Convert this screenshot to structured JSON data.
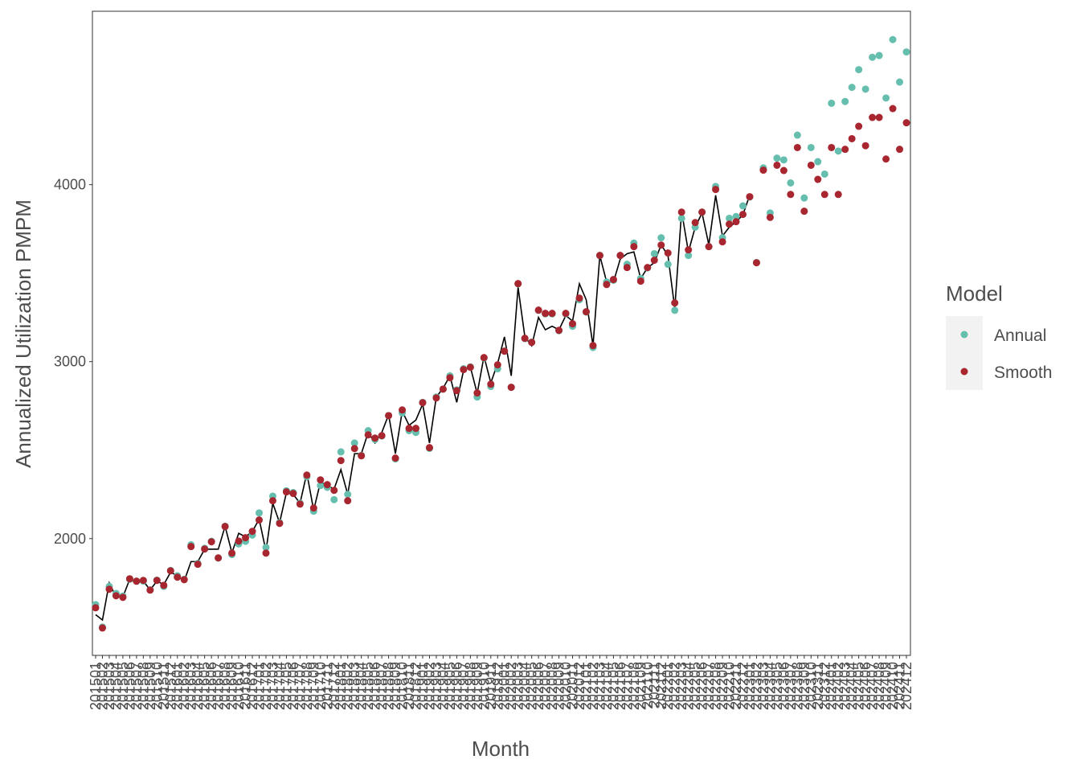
{
  "chart_data": {
    "type": "scatter",
    "x_label": "Month",
    "y_label": "Annualized Utilization PMPM",
    "legend_title": "Model",
    "legend_position": "right",
    "grid": false,
    "categories": [
      "201501",
      "201502",
      "201503",
      "201504",
      "201505",
      "201506",
      "201507",
      "201508",
      "201509",
      "201510",
      "201511",
      "201512",
      "201601",
      "201602",
      "201603",
      "201604",
      "201605",
      "201606",
      "201607",
      "201608",
      "201609",
      "201610",
      "201611",
      "201612",
      "201701",
      "201702",
      "201703",
      "201704",
      "201705",
      "201706",
      "201707",
      "201708",
      "201709",
      "201710",
      "201711",
      "201712",
      "201801",
      "201802",
      "201803",
      "201804",
      "201805",
      "201806",
      "201807",
      "201808",
      "201809",
      "201810",
      "201811",
      "201812",
      "201901",
      "201902",
      "201903",
      "201904",
      "201905",
      "201906",
      "201907",
      "201908",
      "201909",
      "201910",
      "201911",
      "201912",
      "202001",
      "202002",
      "202003",
      "202004",
      "202005",
      "202006",
      "202007",
      "202008",
      "202009",
      "202010",
      "202011",
      "202012",
      "202101",
      "202102",
      "202103",
      "202104",
      "202105",
      "202106",
      "202107",
      "202108",
      "202109",
      "202110",
      "202111",
      "202112",
      "202201",
      "202202",
      "202203",
      "202204",
      "202205",
      "202206",
      "202207",
      "202208",
      "202209",
      "202210",
      "202211",
      "202212",
      "202301",
      "202302",
      "202303",
      "202304",
      "202305",
      "202306",
      "202307",
      "202308",
      "202309",
      "202310",
      "202311",
      "202312",
      "202401",
      "202402",
      "202403",
      "202404",
      "202405",
      "202406",
      "202407",
      "202408",
      "202409",
      "202410",
      "202411",
      "202412"
    ],
    "ylim": [
      1340,
      4980
    ],
    "yticks": [
      2000,
      3000,
      4000
    ],
    "line": {
      "color": "#000000",
      "values": [
        1570,
        1540,
        1750,
        1670,
        1670,
        1770,
        1750,
        1760,
        1710,
        1760,
        1740,
        1810,
        1790,
        1760,
        1870,
        1870,
        1940,
        1940,
        1940,
        2070,
        1920,
        2030,
        2010,
        2040,
        2110,
        1930,
        2200,
        2090,
        2260,
        2250,
        2200,
        2370,
        2160,
        2320,
        2300,
        2280,
        2390,
        2250,
        2480,
        2480,
        2600,
        2540,
        2600,
        2700,
        2480,
        2720,
        2640,
        2670,
        2760,
        2540,
        2800,
        2850,
        2920,
        2770,
        2950,
        2970,
        2820,
        3030,
        2880,
        2990,
        3140,
        2920,
        3420,
        3140,
        3090,
        3250,
        3180,
        3200,
        3180,
        3260,
        3230,
        3440,
        3350,
        3090,
        3600,
        3450,
        3450,
        3580,
        3610,
        3620,
        3470,
        3530,
        3560,
        3660,
        3600,
        3300,
        3850,
        3620,
        3760,
        3840,
        3660,
        3940,
        3710,
        3760,
        3790,
        3830,
        3940,
        null,
        null,
        null,
        null,
        null,
        null,
        null,
        null,
        null,
        null,
        null,
        null,
        null,
        null,
        null,
        null,
        null,
        null,
        null,
        null,
        null,
        null
      ]
    },
    "series": [
      {
        "name": "Annual",
        "color": "#66bfae",
        "values": [
          1627,
          1500,
          1730,
          1690,
          1675,
          1770,
          1760,
          1760,
          1710,
          1765,
          1730,
          1820,
          1790,
          1770,
          1965,
          1860,
          1945,
          1985,
          1890,
          2070,
          1910,
          1970,
          1985,
          2020,
          2145,
          1950,
          2240,
          2090,
          2270,
          2260,
          2200,
          2350,
          2155,
          2300,
          2290,
          2220,
          2490,
          2250,
          2540,
          2470,
          2610,
          2560,
          2580,
          2695,
          2450,
          2710,
          2610,
          2600,
          2770,
          2510,
          2800,
          2845,
          2920,
          2840,
          2960,
          2970,
          2800,
          3020,
          2860,
          2960,
          3060,
          2855,
          3440,
          3130,
          3110,
          3290,
          3270,
          3270,
          3175,
          3270,
          3200,
          3350,
          3280,
          3080,
          3600,
          3450,
          3460,
          3600,
          3550,
          3670,
          3470,
          3530,
          3610,
          3700,
          3550,
          3290,
          3810,
          3600,
          3760,
          3845,
          3650,
          3990,
          3700,
          3810,
          3820,
          3880,
          3930,
          3560,
          4095,
          3840,
          4150,
          4140,
          4010,
          4280,
          3925,
          4210,
          4130,
          4060,
          4460,
          4190,
          4470,
          4550,
          4650,
          4540,
          4720,
          4730,
          4490,
          4820,
          4580,
          4750
        ]
      },
      {
        "name": "Smooth",
        "color": "#a8262f",
        "values": [
          1609,
          1495,
          1714,
          1677,
          1668,
          1773,
          1759,
          1764,
          1709,
          1764,
          1736,
          1818,
          1782,
          1768,
          1955,
          1855,
          1941,
          1982,
          1891,
          2068,
          1918,
          1986,
          2005,
          2041,
          2105,
          1918,
          2214,
          2086,
          2264,
          2255,
          2195,
          2359,
          2173,
          2332,
          2305,
          2273,
          2441,
          2214,
          2509,
          2468,
          2586,
          2568,
          2582,
          2695,
          2455,
          2727,
          2623,
          2623,
          2768,
          2514,
          2795,
          2845,
          2909,
          2836,
          2955,
          2968,
          2823,
          3023,
          2873,
          2982,
          3059,
          2855,
          3441,
          3132,
          3109,
          3291,
          3273,
          3273,
          3177,
          3273,
          3214,
          3359,
          3282,
          3091,
          3600,
          3436,
          3464,
          3600,
          3532,
          3650,
          3455,
          3532,
          3573,
          3659,
          3614,
          3332,
          3845,
          3632,
          3786,
          3845,
          3650,
          3973,
          3677,
          3777,
          3791,
          3832,
          3932,
          3559,
          4082,
          3815,
          4110,
          4080,
          3945,
          4210,
          3850,
          4110,
          4030,
          3945,
          4210,
          3945,
          4200,
          4260,
          4330,
          4220,
          4380,
          4380,
          4145,
          4430,
          4200,
          4350
        ]
      }
    ]
  }
}
